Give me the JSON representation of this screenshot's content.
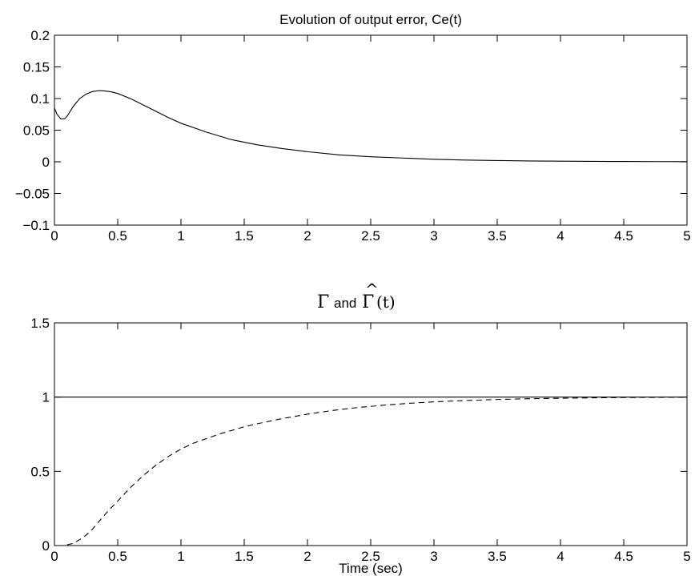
{
  "chart_data": [
    {
      "type": "line",
      "title": "Evolution of output error, Ce(t)",
      "xlabel": "",
      "ylabel": "",
      "xlim": [
        0,
        5
      ],
      "ylim": [
        -0.1,
        0.2
      ],
      "xticks": [
        "0",
        "0.5",
        "1",
        "1.5",
        "2",
        "2.5",
        "3",
        "3.5",
        "4",
        "4.5",
        "5"
      ],
      "yticks": [
        "−0.1",
        "−0.05",
        "0",
        "0.05",
        "0.1",
        "0.15",
        "0.2"
      ],
      "grid": false,
      "series": [
        {
          "style": "solid",
          "color": "#000000",
          "x": [
            0,
            0.02,
            0.05,
            0.08,
            0.1,
            0.15,
            0.2,
            0.25,
            0.3,
            0.35,
            0.4,
            0.45,
            0.5,
            0.6,
            0.7,
            0.8,
            0.9,
            1.0,
            1.2,
            1.4,
            1.6,
            1.8,
            2.0,
            2.25,
            2.5,
            2.75,
            3.0,
            3.25,
            3.5,
            3.75,
            4.0,
            4.25,
            4.5,
            4.75,
            5.0
          ],
          "y": [
            0.085,
            0.075,
            0.068,
            0.068,
            0.072,
            0.088,
            0.1,
            0.107,
            0.111,
            0.1125,
            0.112,
            0.1105,
            0.108,
            0.1,
            0.09,
            0.08,
            0.07,
            0.061,
            0.047,
            0.035,
            0.027,
            0.021,
            0.016,
            0.011,
            0.008,
            0.006,
            0.004,
            0.0028,
            0.002,
            0.0014,
            0.001,
            0.0007,
            0.0005,
            0.0003,
            0.0002
          ]
        }
      ]
    },
    {
      "type": "line",
      "title_parts": {
        "gamma": "Γ",
        "and": "and",
        "hat_gamma": "Γ",
        "hat": "^",
        "arg": "(t)"
      },
      "xlabel": "Time (sec)",
      "ylabel": "",
      "xlim": [
        0,
        5
      ],
      "ylim": [
        0,
        1.5
      ],
      "xticks": [
        "0",
        "0.5",
        "1",
        "1.5",
        "2",
        "2.5",
        "3",
        "3.5",
        "4",
        "4.5",
        "5"
      ],
      "yticks": [
        "0",
        "0.5",
        "1",
        "1.5"
      ],
      "grid": false,
      "series": [
        {
          "style": "solid",
          "color": "#000000",
          "x": [
            0,
            5
          ],
          "y": [
            1,
            1
          ]
        },
        {
          "style": "dashed",
          "color": "#000000",
          "x": [
            0.1,
            0.15,
            0.2,
            0.25,
            0.3,
            0.35,
            0.4,
            0.5,
            0.6,
            0.7,
            0.8,
            0.9,
            1.0,
            1.1,
            1.2,
            1.3,
            1.4,
            1.5,
            1.6,
            1.8,
            2.0,
            2.2,
            2.4,
            2.6,
            2.8,
            3.0,
            3.25,
            3.5,
            3.75,
            4.0,
            4.25,
            4.5,
            4.75,
            5.0
          ],
          "y": [
            0.005,
            0.015,
            0.04,
            0.07,
            0.11,
            0.16,
            0.21,
            0.3,
            0.39,
            0.47,
            0.54,
            0.6,
            0.65,
            0.69,
            0.72,
            0.75,
            0.775,
            0.8,
            0.82,
            0.855,
            0.885,
            0.91,
            0.93,
            0.945,
            0.958,
            0.968,
            0.977,
            0.984,
            0.989,
            0.992,
            0.995,
            0.997,
            0.998,
            0.999
          ]
        }
      ]
    }
  ]
}
